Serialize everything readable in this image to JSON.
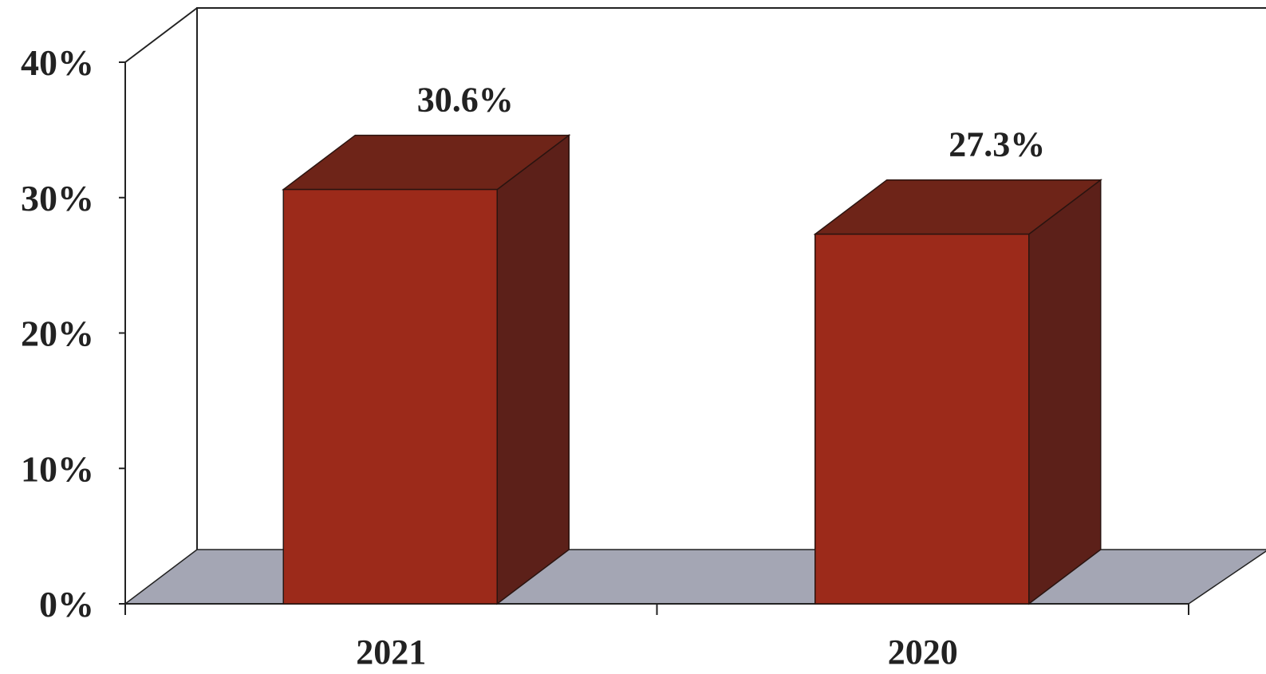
{
  "chart_data": {
    "type": "bar",
    "title": "",
    "xlabel": "",
    "ylabel": "",
    "categories": [
      "2021",
      "2020"
    ],
    "values": [
      30.6,
      27.3
    ],
    "value_labels": [
      "30.6%",
      "27.3%"
    ],
    "ylim": [
      0,
      40
    ],
    "y_ticks": [
      0,
      10,
      20,
      30,
      40
    ],
    "y_tick_labels": [
      "0%",
      "10%",
      "20%",
      "30%",
      "40%"
    ],
    "three_d": true,
    "grid": false,
    "legend": "none",
    "colors": {
      "bar_front": "#9c2a1a",
      "bar_top": "#6e2418",
      "bar_side": "#5c2019",
      "floor": "#a4a6b4",
      "axis": "#222222"
    }
  }
}
